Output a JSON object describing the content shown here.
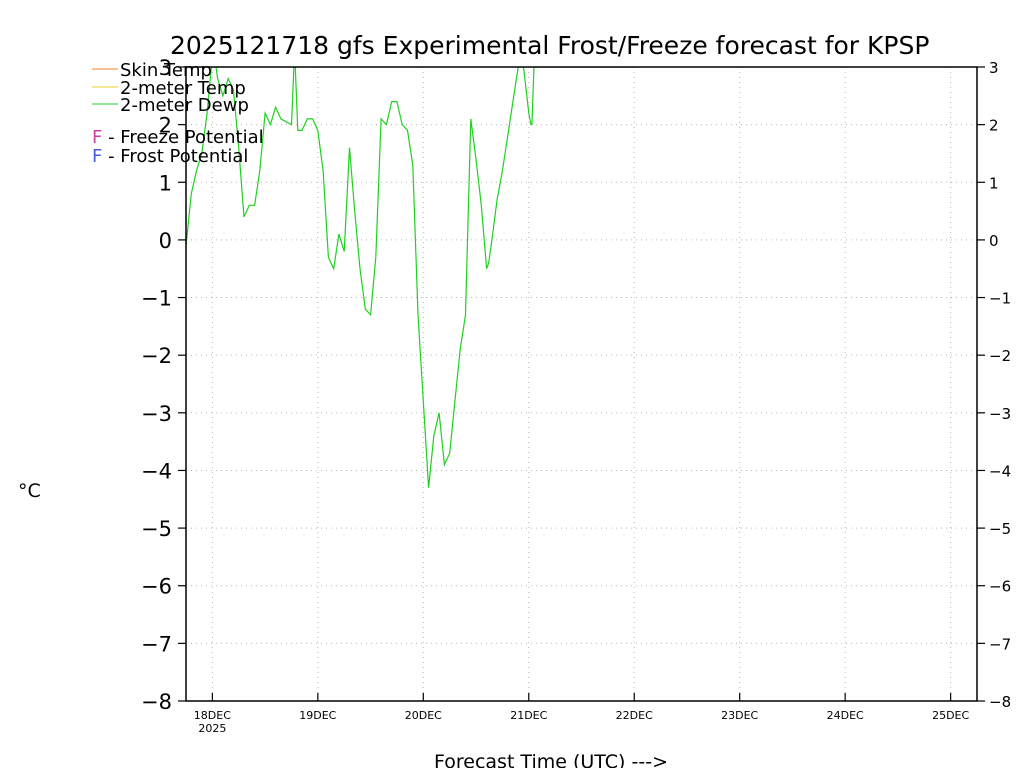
{
  "chart_data": {
    "type": "line",
    "title": "2025121718 gfs Experimental Frost/Freeze forecast for KPSP",
    "xlabel": "Forecast Time (UTC) --->",
    "ylabel": "°C",
    "ylim": [
      -8,
      3
    ],
    "xlim_days": [
      -0.25,
      7.25
    ],
    "x_ticks": [
      "18DEC",
      "19DEC",
      "20DEC",
      "21DEC",
      "22DEC",
      "23DEC",
      "24DEC",
      "25DEC"
    ],
    "x_tick_sub": "2025",
    "y_ticks": [
      "3",
      "2",
      "1",
      "0",
      "-1",
      "-2",
      "-3",
      "-4",
      "-5",
      "-6",
      "-7",
      "-8"
    ],
    "grid": true,
    "legend": {
      "position": "top-left",
      "series": [
        {
          "label": "Skin Temp",
          "color": "#f08020"
        },
        {
          "label": "2-meter Temp",
          "color": "#e8d020"
        },
        {
          "label": "2-meter Dewp",
          "color": "#20d020"
        }
      ],
      "markers": [
        {
          "letter": "F",
          "label": " - Freeze Potential",
          "color": "#d040a0"
        },
        {
          "letter": "F",
          "label": " - Frost Potential",
          "color": "#4060e0"
        }
      ]
    },
    "series": [
      {
        "name": "2-meter Dewp",
        "color": "#20d020",
        "x_days": [
          -0.25,
          -0.2,
          -0.15,
          -0.1,
          -0.05,
          0.0,
          0.02,
          0.05,
          0.1,
          0.15,
          0.2,
          0.25,
          0.3,
          0.35,
          0.4,
          0.45,
          0.5,
          0.55,
          0.6,
          0.65,
          0.7,
          0.75,
          0.78,
          0.81,
          0.85,
          0.9,
          0.95,
          1.0,
          1.05,
          1.1,
          1.15,
          1.2,
          1.25,
          1.3,
          1.35,
          1.4,
          1.45,
          1.5,
          1.55,
          1.6,
          1.65,
          1.7,
          1.75,
          1.8,
          1.85,
          1.9,
          1.95,
          2.0,
          2.05,
          2.1,
          2.15,
          2.2,
          2.25,
          2.3,
          2.35,
          2.4,
          2.45,
          2.5,
          2.55,
          2.6,
          2.62,
          2.65,
          2.7,
          2.75,
          2.8,
          2.85,
          2.9,
          2.95,
          3.0,
          3.02,
          3.03,
          3.05,
          3.1,
          3.15,
          3.2,
          3.25,
          3.3,
          3.35,
          3.4,
          3.45,
          3.5,
          3.55,
          3.85,
          3.9,
          3.95,
          4.0,
          4.02
        ],
        "values": [
          -0.1,
          0.8,
          1.2,
          1.5,
          2.2,
          3.2,
          3.2,
          2.8,
          2.5,
          2.8,
          2.6,
          1.6,
          0.4,
          0.6,
          0.6,
          1.2,
          2.2,
          2.0,
          2.3,
          2.1,
          2.05,
          2.0,
          3.3,
          1.9,
          1.9,
          2.1,
          2.1,
          1.9,
          1.2,
          -0.3,
          -0.5,
          0.1,
          -0.2,
          1.6,
          0.5,
          -0.5,
          -1.2,
          -1.3,
          -0.3,
          2.1,
          2.0,
          2.4,
          2.4,
          2.0,
          1.9,
          1.3,
          -1.3,
          -2.8,
          -4.3,
          -3.4,
          -3.0,
          -3.9,
          -3.7,
          -2.8,
          -1.9,
          -1.3,
          2.1,
          1.4,
          0.6,
          -0.5,
          -0.4,
          0.0,
          0.7,
          1.2,
          1.8,
          2.4,
          3.0,
          3.0,
          2.2,
          2.0,
          2.0,
          3.0,
          3.0,
          3.0,
          3.0,
          3.0,
          3.0,
          3.0,
          3.0,
          3.0,
          3.0,
          3.0,
          3.0,
          3.0,
          3.0,
          3.0,
          3.0
        ]
      }
    ]
  }
}
